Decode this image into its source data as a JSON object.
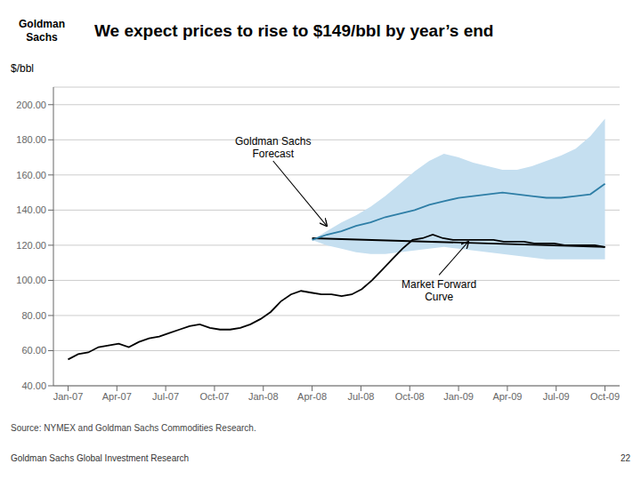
{
  "chart_data": {
    "type": "line",
    "title": "We expect prices to rise to $149/bbl by year’s end",
    "ylabel": "$/bbl",
    "source": "Source: NYMEX and Goldman Sachs Commodities Research.",
    "footer_left": "Goldman Sachs Global Investment Research",
    "footer_right": "22",
    "logo": "Goldman\nSachs",
    "xlim": [
      -0.3,
      11.3
    ],
    "xticks": [
      {
        "value": 0,
        "label": "Jan-07"
      },
      {
        "value": 1,
        "label": "Apr-07"
      },
      {
        "value": 2,
        "label": "Jul-07"
      },
      {
        "value": 3,
        "label": "Oct-07"
      },
      {
        "value": 4,
        "label": "Jan-08"
      },
      {
        "value": 5,
        "label": "Apr-08"
      },
      {
        "value": 6,
        "label": "Jul-08"
      },
      {
        "value": 7,
        "label": "Oct-08"
      },
      {
        "value": 8,
        "label": "Jan-09"
      },
      {
        "value": 9,
        "label": "Apr-09"
      },
      {
        "value": 10,
        "label": "Jul-09"
      },
      {
        "value": 11,
        "label": "Oct-09"
      }
    ],
    "ylim": [
      40,
      210
    ],
    "yticks": [
      {
        "value": 40,
        "label": "40.00"
      },
      {
        "value": 60,
        "label": "60.00"
      },
      {
        "value": 80,
        "label": "80.00"
      },
      {
        "value": 100,
        "label": "100.00"
      },
      {
        "value": 120,
        "label": "120.00"
      },
      {
        "value": 140,
        "label": "140.00"
      },
      {
        "value": 160,
        "label": "160.00"
      },
      {
        "value": 180,
        "label": "180.00"
      },
      {
        "value": 200,
        "label": "200.00"
      }
    ],
    "grid": true,
    "series": [
      {
        "type": "band",
        "color": "#c5dff0",
        "x": [
          5,
          5.3,
          5.6,
          5.9,
          6.2,
          6.5,
          6.8,
          7.1,
          7.4,
          7.7,
          8,
          8.3,
          8.6,
          8.9,
          9.2,
          9.5,
          9.8,
          10.1,
          10.4,
          10.7,
          11
        ],
        "lower": [
          123,
          120,
          118,
          116,
          115,
          115,
          116,
          117,
          118,
          119,
          118,
          117,
          116,
          115,
          114,
          113,
          112,
          112,
          112,
          112,
          112
        ],
        "upper": [
          123,
          128,
          133,
          137,
          142,
          148,
          155,
          162,
          168,
          172,
          170,
          167,
          165,
          163,
          163,
          165,
          168,
          171,
          175,
          182,
          192
        ]
      },
      {
        "type": "line",
        "color": "#000000",
        "x": [
          5,
          11
        ],
        "values": [
          124,
          119
        ]
      },
      {
        "type": "line",
        "color": "#2e7ea6",
        "x": [
          5,
          5.3,
          5.6,
          5.9,
          6.2,
          6.5,
          6.8,
          7.1,
          7.4,
          7.7,
          8,
          8.3,
          8.6,
          8.9,
          9.2,
          9.5,
          9.8,
          10.1,
          10.4,
          10.7,
          11
        ],
        "values": [
          123,
          126,
          128,
          131,
          133,
          136,
          138,
          140,
          143,
          145,
          147,
          148,
          149,
          150,
          149,
          148,
          147,
          147,
          148,
          149,
          155
        ]
      },
      {
        "type": "line",
        "color": "#000000",
        "x": [
          0,
          0.2075471698,
          0.4150943396,
          0.6226415094,
          0.8301886792,
          1.0377358491,
          1.2452830189,
          1.4528301887,
          1.6603773585,
          1.8679245283,
          2.0754716981,
          2.2830188679,
          2.4905660377,
          2.6981132075,
          2.9056603774,
          3.1132075472,
          3.320754717,
          3.5283018868,
          3.7358490566,
          3.9433962264,
          4.1509433962,
          4.358490566,
          4.5660377358,
          4.7735849057,
          4.9811320755,
          5.1886792453,
          5.3962264151,
          5.6037735849,
          5.8113207547,
          6.0188679245,
          6.2264150943,
          6.4339622642,
          6.641509434,
          6.8490566038,
          7.0566037736,
          7.2641509434,
          7.4716981132,
          7.679245283,
          7.8867924528,
          8.0943396226,
          8.3018867925,
          8.5094339623,
          8.7169811321,
          8.9245283019,
          9.1320754717,
          9.3396226415,
          9.5471698113,
          9.7547169811,
          9.9622641509,
          10.1698113208,
          10.3773584906,
          10.5849056604,
          10.7924528302,
          11
        ],
        "values": [
          55,
          58,
          59,
          62,
          63,
          64,
          62,
          65,
          67,
          68,
          70,
          72,
          74,
          75,
          73,
          72,
          72,
          73,
          75,
          78,
          82,
          88,
          92,
          94,
          93,
          92,
          92,
          91,
          92,
          95,
          100,
          106,
          112,
          118,
          123,
          124,
          126,
          124,
          123,
          123,
          123,
          123,
          123,
          122,
          122,
          122,
          121,
          121,
          121,
          120,
          120,
          120,
          120,
          119
        ]
      }
    ],
    "annotations": [
      {
        "text": "Goldman Sachs\nForecast",
        "x": 5.3,
        "y": 131,
        "text_x": 4.2,
        "text_y": 168
      },
      {
        "text": "Market Forward\nCurve",
        "x": 8.2,
        "y": 122,
        "text_x": 7.6,
        "text_y": 103
      }
    ]
  }
}
